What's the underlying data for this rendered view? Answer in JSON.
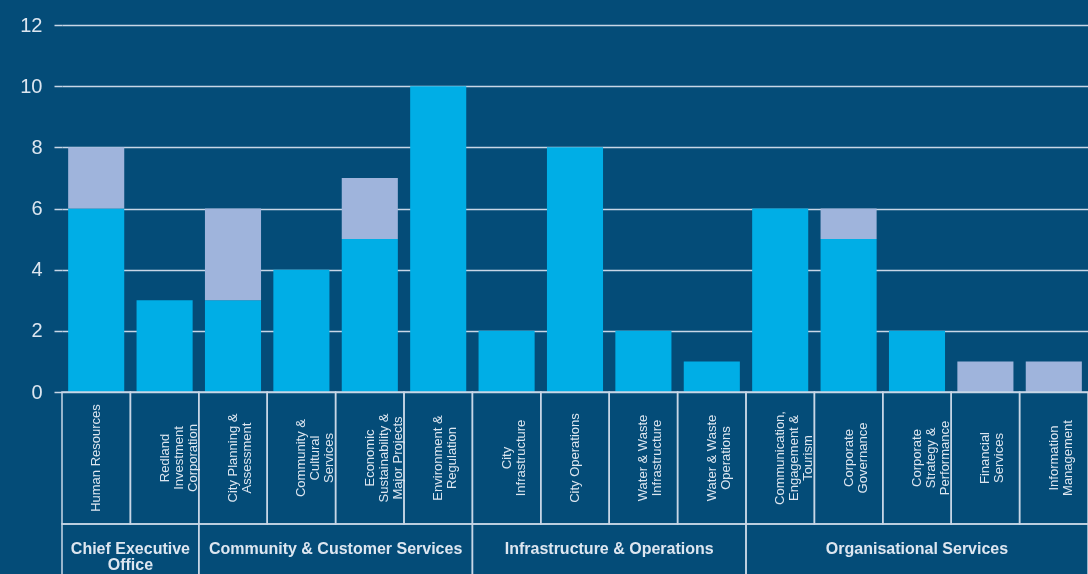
{
  "chart_data": {
    "type": "bar",
    "stacked": true,
    "categories": [
      "Human Resources",
      "Redland Investment Corporation",
      "City Planning & Assessment",
      "Community & Cultural Services",
      "Economic Sustainability & Major Projects",
      "Environment & Regulation",
      "City Infrastructure",
      "City Operations",
      "Water & Waste Infrastructure",
      "Water & Waste Operations",
      "Communication, Engagement & Tourism",
      "Corporate Governance",
      "Corporate Strategy & Performance",
      "Financial Services",
      "Information Management"
    ],
    "series": [
      {
        "color": "#00aee6",
        "values": [
          6,
          3,
          3,
          4,
          5,
          10,
          2,
          8,
          2,
          1,
          6,
          5,
          2,
          0,
          0
        ]
      },
      {
        "color": "#9fb4dc",
        "values": [
          2,
          0,
          3,
          0,
          2,
          0,
          0,
          0,
          0,
          0,
          0,
          1,
          0,
          1,
          1
        ]
      }
    ],
    "ylim": [
      0,
      12
    ],
    "yticks": [
      0,
      2,
      4,
      6,
      8,
      10,
      12
    ],
    "grid": "y",
    "annotations": [
      "Chief Executive Office",
      "Community & Customer Services",
      "Infrastructure & Operations",
      "Organisational Services"
    ]
  }
}
